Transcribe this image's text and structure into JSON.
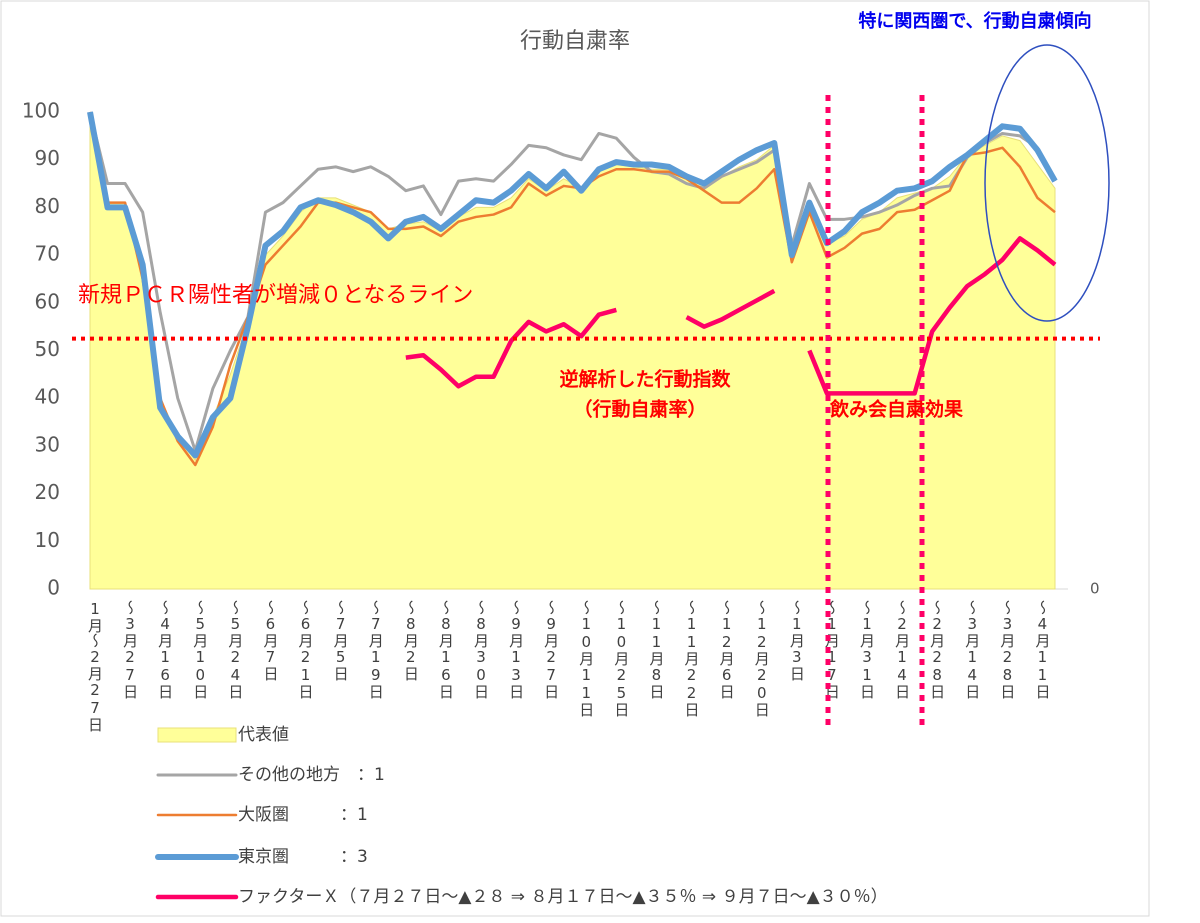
{
  "chart_data": {
    "type": "line",
    "title": "行動自粛率",
    "categories": [
      "1月～2月27日",
      null,
      "～3月27日",
      null,
      "～4月16日",
      null,
      "～5月10日",
      null,
      "～5月24日",
      null,
      "～6月7日",
      null,
      "～6月21日",
      null,
      "～7月5日",
      null,
      "～7月19日",
      null,
      "～8月2日",
      null,
      "～8月16日",
      null,
      "～8月30日",
      null,
      "～9月13日",
      null,
      "～9月27日",
      null,
      "～10月11日",
      null,
      "～10月25日",
      null,
      "～11月8日",
      null,
      "～11月22日",
      null,
      "～12月6日",
      null,
      "～12月20日",
      null,
      "～1月3日",
      null,
      "～1月17日",
      null,
      "～1月31日",
      null,
      "～2月14日",
      null,
      "～2月28日",
      null,
      "～3月14日",
      null,
      "～3月28日",
      null,
      "～4月11日",
      null
    ],
    "ylim": [
      0,
      100
    ],
    "yticks": [
      0,
      10,
      20,
      30,
      40,
      50,
      60,
      70,
      80,
      90,
      100
    ],
    "y2ticks": [
      0
    ],
    "series": [
      {
        "name": "代表値",
        "color": "#ffff99",
        "kind": "area",
        "values": [
          100,
          81,
          81,
          67,
          40,
          32,
          27,
          36,
          45,
          56,
          70,
          74,
          79,
          82,
          82,
          80.5,
          79,
          75.5,
          76.5,
          77,
          75,
          78,
          80,
          80,
          82,
          86,
          83.5,
          86,
          84,
          87.5,
          89,
          88.5,
          88,
          88,
          86,
          84.5,
          86.5,
          88.5,
          90,
          93,
          69.5,
          80,
          72.5,
          74,
          77.5,
          79,
          82,
          83,
          84,
          86.5,
          91,
          93,
          95,
          94,
          89,
          84
        ]
      },
      {
        "name": "その他の地方　：1",
        "color": "#a5a5a5",
        "values": [
          100,
          85,
          85,
          79,
          58,
          40,
          29,
          42,
          50,
          57,
          79,
          81,
          84.5,
          88,
          88.5,
          87.5,
          88.5,
          86.5,
          83.5,
          84.5,
          78.5,
          85.5,
          86,
          85.5,
          89,
          93,
          92.5,
          91,
          90,
          95.5,
          94.5,
          90.5,
          87.5,
          87,
          85,
          84,
          86.5,
          88,
          89.5,
          92,
          72,
          85,
          77.5,
          77.5,
          78,
          79,
          80.5,
          82.5,
          84,
          84.5,
          90.5,
          93.5,
          95.5,
          95,
          92.5,
          85.5
        ]
      },
      {
        "name": "大阪圏　　　：1",
        "color": "#ed7d31",
        "values": [
          100,
          81,
          81,
          65,
          40,
          31,
          26,
          34,
          47,
          57,
          68,
          72,
          76,
          81,
          81,
          80,
          79,
          75.5,
          75.5,
          76,
          74,
          77,
          78,
          78.5,
          80,
          85,
          82.5,
          84.5,
          84,
          86.5,
          88,
          88,
          87.5,
          87.5,
          86,
          83.5,
          81,
          81,
          84,
          88,
          68.5,
          79,
          69.5,
          71.5,
          74.5,
          75.5,
          79,
          79.5,
          81.5,
          83.5,
          91,
          91.5,
          92.5,
          88.5,
          82,
          79
        ]
      },
      {
        "name": "東京圏　　　：3",
        "color": "#5b9bd5",
        "values": [
          100,
          80,
          80,
          68,
          38,
          32,
          28,
          36,
          40,
          55,
          72,
          75,
          80,
          81.5,
          80.5,
          79,
          77,
          73.5,
          77,
          78,
          75.5,
          78.5,
          81.5,
          81,
          83.5,
          87,
          84,
          87.5,
          83.5,
          88,
          89.5,
          89,
          89,
          88.5,
          86.5,
          85,
          87.5,
          90,
          92,
          93.5,
          70,
          81,
          72.5,
          75,
          79,
          81,
          83.5,
          84,
          85.5,
          88.5,
          91,
          94,
          97,
          96.5,
          92,
          85.5
        ]
      },
      {
        "name": "ファクターＸ（７月２７日～▲２８ ⇒ ８月１７日～▲３５％ ⇒ ９月７日～▲３０％）",
        "color": "#ff0066",
        "values": [
          null,
          null,
          null,
          null,
          null,
          null,
          null,
          null,
          null,
          null,
          null,
          null,
          null,
          null,
          null,
          null,
          null,
          null,
          48.5,
          49,
          46,
          42.5,
          44.5,
          44.5,
          52,
          56,
          54,
          55.5,
          53,
          57.5,
          58.5,
          null,
          null,
          null,
          57,
          55,
          56.5,
          58.5,
          60.5,
          62.5,
          null,
          50,
          41,
          41,
          41,
          41,
          41,
          41,
          54,
          59,
          63.5,
          66,
          69,
          73.5,
          71,
          68
        ]
      }
    ],
    "threshold": {
      "value": 52.5,
      "label": "新規ＰＣＲ陽性者が増減０となるライン"
    },
    "annotations": [
      "逆解析した行動指数",
      "（行動自粛率）",
      "飲み会自粛効果",
      "特に関西圏で、行動自粛傾向"
    ]
  }
}
